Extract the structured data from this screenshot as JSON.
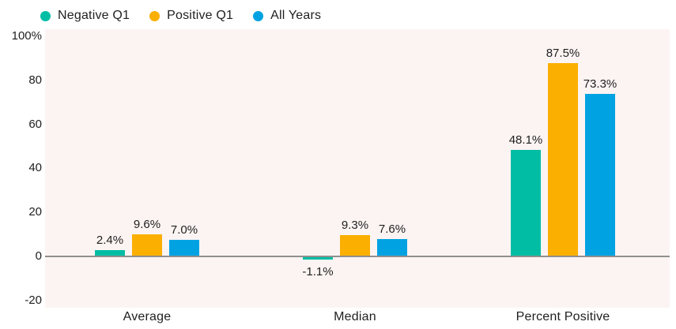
{
  "chart_data": {
    "type": "bar",
    "title": "",
    "xlabel": "",
    "ylabel": "",
    "categories": [
      "Average",
      "Median",
      "Percent Positive"
    ],
    "series": [
      {
        "name": "Negative Q1",
        "color": "#00BDA4",
        "values": [
          2.4,
          -1.1,
          48.1
        ],
        "labels": [
          "2.4%",
          "-1.1%",
          "48.1%"
        ]
      },
      {
        "name": "Positive Q1",
        "color": "#FBAF00",
        "values": [
          9.6,
          9.3,
          87.5
        ],
        "labels": [
          "9.6%",
          "9.3%",
          "87.5%"
        ]
      },
      {
        "name": "All Years",
        "color": "#00A2E2",
        "values": [
          7.0,
          7.6,
          73.3
        ],
        "labels": [
          "7.0%",
          "7.6%",
          "73.3%"
        ]
      }
    ],
    "yticks": [
      {
        "label": "100%",
        "value": 100
      },
      {
        "label": "80",
        "value": 80
      },
      {
        "label": "60",
        "value": 60
      },
      {
        "label": "40",
        "value": 40
      },
      {
        "label": "20",
        "value": 20
      },
      {
        "label": "0",
        "value": 0
      },
      {
        "label": "-20",
        "value": -20
      }
    ],
    "ylim": [
      -20,
      100
    ],
    "grid": false,
    "legend_position": "top",
    "plot_bg_color": "#FCF4F3",
    "axis_line_color": "#8F8F8F",
    "text_color": "#1F1F1F"
  }
}
